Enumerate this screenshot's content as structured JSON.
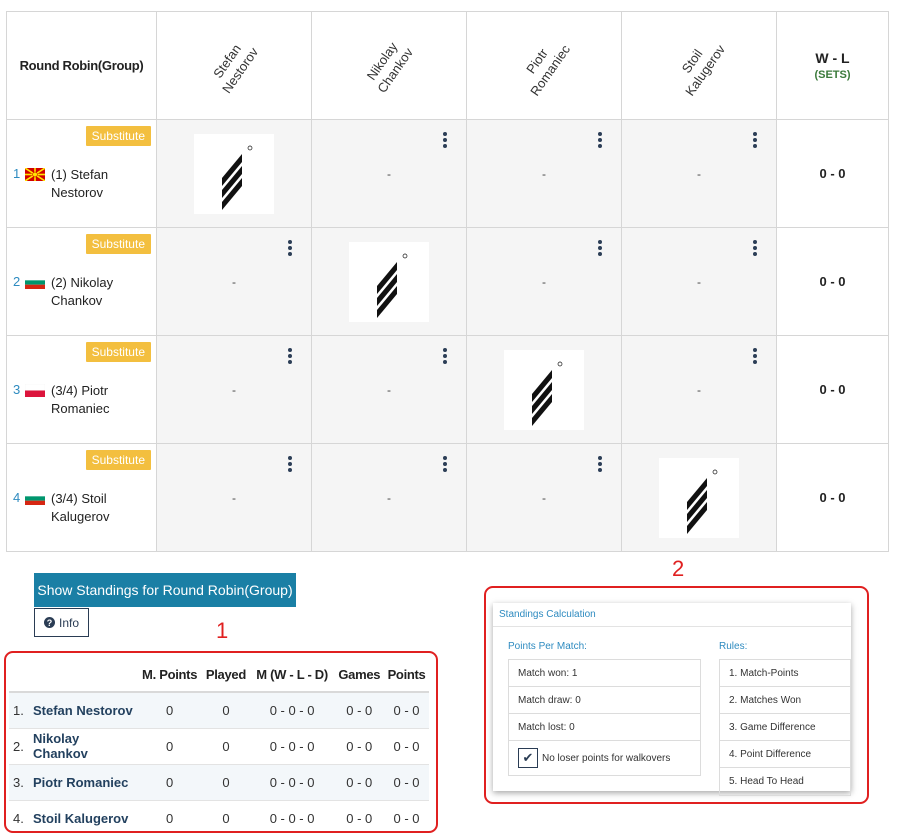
{
  "grid": {
    "corner_label": "Round Robin(Group)",
    "columns": [
      {
        "line1": "Stefan",
        "line2": "Nestorov"
      },
      {
        "line1": "Nikolay",
        "line2": "Chankov"
      },
      {
        "line1": "Piotr",
        "line2": "Romaniec"
      },
      {
        "line1": "Stoil",
        "line2": "Kalugerov"
      }
    ],
    "wl_header": "W - L",
    "wl_sub": "(SETS)",
    "substitute_label": "Substitute",
    "empty_score": "-",
    "players": [
      {
        "num": "1",
        "name": "(1) Stefan Nestorov",
        "flag": "mk",
        "wl": "0 - 0"
      },
      {
        "num": "2",
        "name": "(2) Nikolay Chankov",
        "flag": "bg",
        "wl": "0 - 0"
      },
      {
        "num": "3",
        "name": "(3/4) Piotr Romaniec",
        "flag": "pl",
        "wl": "0 - 0"
      },
      {
        "num": "4",
        "name": "(3/4) Stoil Kalugerov",
        "flag": "bg",
        "wl": "0 - 0"
      }
    ]
  },
  "controls": {
    "show_standings": "Show Standings for Round Robin(Group)",
    "info": "Info"
  },
  "annotations": {
    "one": "1",
    "two": "2"
  },
  "standings": {
    "headers": [
      "M. Points",
      "Played",
      "M (W - L - D)",
      "Games",
      "Points"
    ],
    "rows": [
      {
        "rank": "1.",
        "name": "Stefan Nestorov",
        "mpoints": "0",
        "played": "0",
        "wld": "0 - 0 - 0",
        "games": "0 - 0",
        "points": "0 - 0"
      },
      {
        "rank": "2.",
        "name": "Nikolay Chankov",
        "mpoints": "0",
        "played": "0",
        "wld": "0 - 0 - 0",
        "games": "0 - 0",
        "points": "0 - 0"
      },
      {
        "rank": "3.",
        "name": "Piotr Romaniec",
        "mpoints": "0",
        "played": "0",
        "wld": "0 - 0 - 0",
        "games": "0 - 0",
        "points": "0 - 0"
      },
      {
        "rank": "4.",
        "name": "Stoil Kalugerov",
        "mpoints": "0",
        "played": "0",
        "wld": "0 - 0 - 0",
        "games": "0 - 0",
        "points": "0 - 0"
      }
    ]
  },
  "calc": {
    "title": "Standings Calculation",
    "points_title": "Points Per Match:",
    "match_won": "Match won: 1",
    "match_draw": "Match draw: 0",
    "match_lost": "Match lost: 0",
    "walkover": "No loser points for walkovers",
    "rules_title": "Rules:",
    "rules": [
      "1. Match-Points",
      "2. Matches Won",
      "3. Game Difference",
      "4. Point Difference",
      "5. Head To Head"
    ]
  },
  "colors": {
    "accent": "#1a7fa5",
    "substitute": "#f3bf3f",
    "annotation": "#e02020"
  }
}
